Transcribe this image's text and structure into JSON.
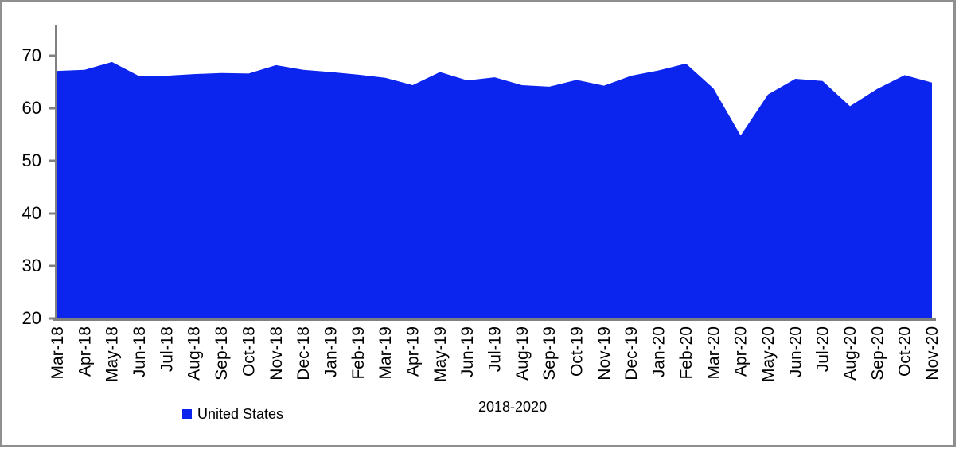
{
  "chart_data": {
    "type": "area",
    "title": "",
    "categories": [
      "Mar-18",
      "Apr-18",
      "May-18",
      "Jun-18",
      "Jul-18",
      "Aug-18",
      "Sep-18",
      "Oct-18",
      "Nov-18",
      "Dec-18",
      "Jan-19",
      "Feb-19",
      "Mar-19",
      "Apr-19",
      "May-19",
      "Jun-19",
      "Jul-19",
      "Aug-19",
      "Sep-19",
      "Oct-19",
      "Nov-19",
      "Dec-19",
      "Jan-20",
      "Feb-20",
      "Mar-20",
      "Apr-20",
      "May-20",
      "Jun-20",
      "Jul-20",
      "Aug-20",
      "Sep-20",
      "Oct-20",
      "Nov-20"
    ],
    "series": [
      {
        "name": "United States",
        "values": [
          67.1,
          67.3,
          68.8,
          66.1,
          66.2,
          66.5,
          66.7,
          66.6,
          68.2,
          67.3,
          66.9,
          66.4,
          65.8,
          64.4,
          66.9,
          65.3,
          65.9,
          64.4,
          64.1,
          65.4,
          64.3,
          66.2,
          67.2,
          68.5,
          63.8,
          54.8,
          62.6,
          65.6,
          65.2,
          60.4,
          63.7,
          66.3,
          64.9
        ]
      }
    ],
    "xlabel": "2018-2020",
    "ylabel": "",
    "ylim": [
      20,
      70
    ],
    "yticks": [
      20,
      30,
      40,
      50,
      60,
      70
    ],
    "grid": false,
    "legend_position": "bottom-left",
    "colors": {
      "area_fill": "#0b24ee",
      "axis": "#808080",
      "text": "#000000",
      "frame_border": "#8f8f8f"
    }
  },
  "legend": {
    "items": [
      {
        "label": "United States",
        "color": "#0b24ee"
      }
    ]
  }
}
